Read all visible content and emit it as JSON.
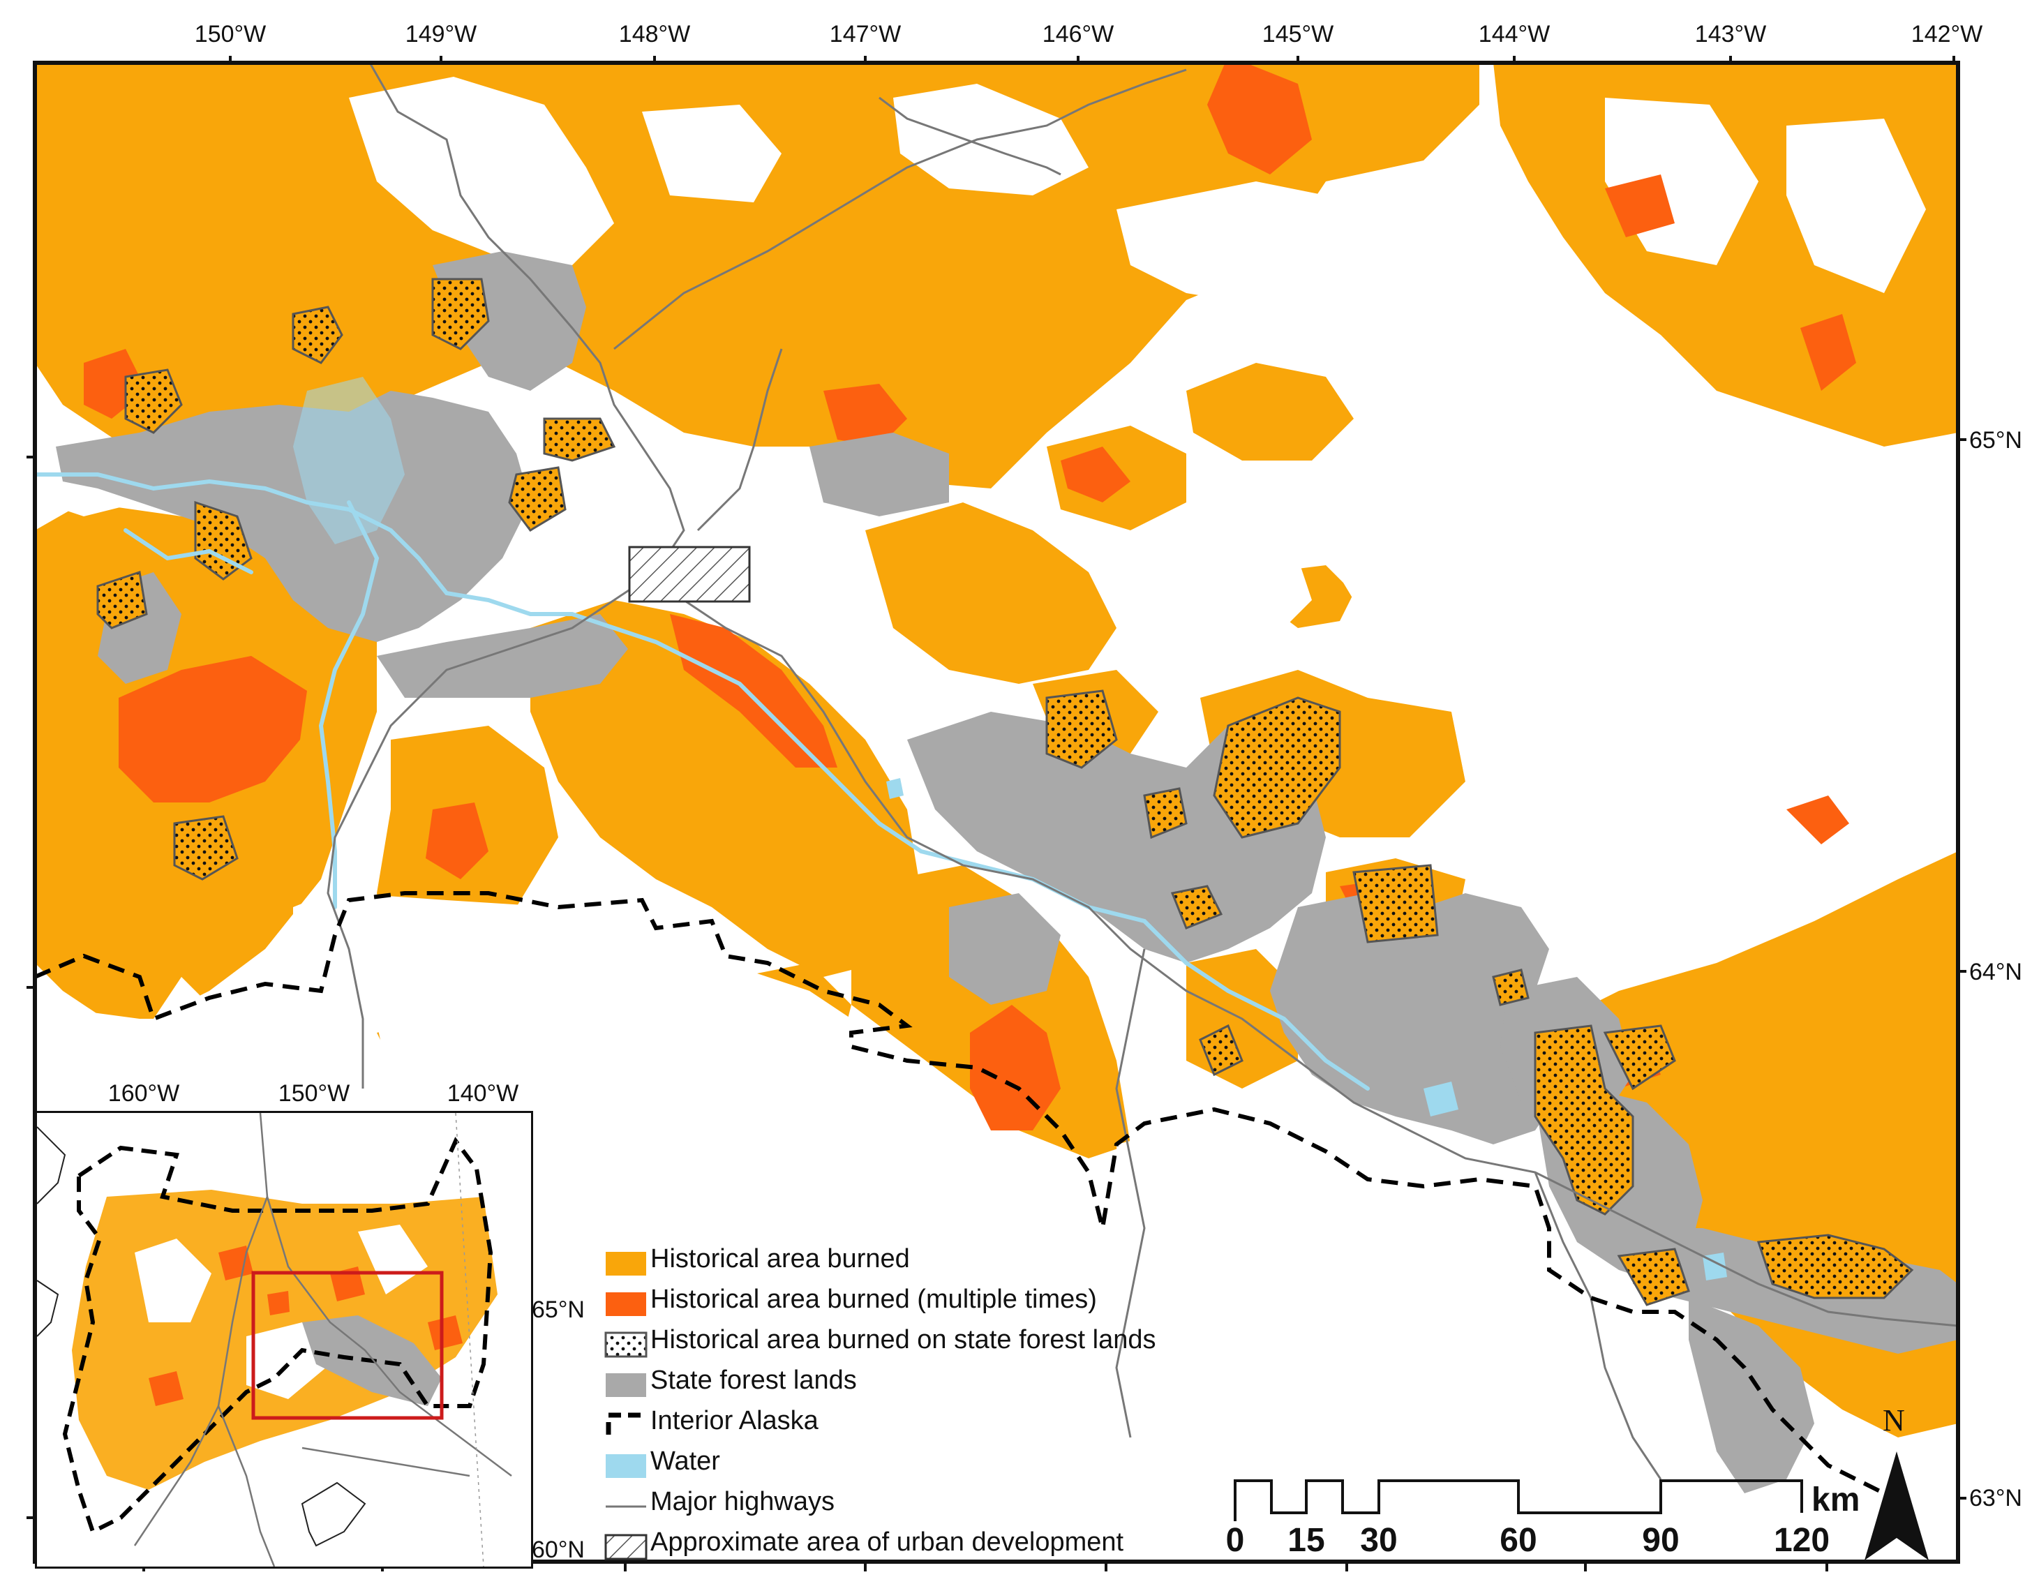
{
  "map": {
    "graticule": {
      "longitudes": [
        "150°W",
        "149°W",
        "148°W",
        "147°W",
        "146°W",
        "145°W",
        "144°W",
        "143°W",
        "142°W"
      ],
      "latitudes": [
        "65°N",
        "64°N",
        "63°N"
      ]
    },
    "legend": [
      {
        "label": "Historical area burned",
        "swatch": "burned",
        "color": "#F9A60A"
      },
      {
        "label": "Historical area burned (multiple times)",
        "swatch": "burned-multiple",
        "color": "#FC6010"
      },
      {
        "label": "Historical area burned on state forest lands",
        "swatch": "burned-state",
        "color": "#ffffff"
      },
      {
        "label": "State forest lands",
        "swatch": "state-forest",
        "color": "#A9A9A9"
      },
      {
        "label": "Interior Alaska",
        "swatch": "interior-boundary",
        "color": "#000000"
      },
      {
        "label": "Water",
        "swatch": "water",
        "color": "#9ED9EE"
      },
      {
        "label": "Major highways",
        "swatch": "highway",
        "color": "#777777"
      },
      {
        "label": "Approximate area of urban development",
        "swatch": "urban",
        "color": "#ffffff"
      }
    ],
    "inset": {
      "longitudes": [
        "160°W",
        "150°W",
        "140°W"
      ],
      "latitudes": [
        "65°N",
        "60°N"
      ]
    },
    "scale_bar": {
      "unit": "km",
      "ticks": [
        "0",
        "15",
        "30",
        "60",
        "90",
        "120"
      ]
    },
    "north_arrow": "N"
  }
}
